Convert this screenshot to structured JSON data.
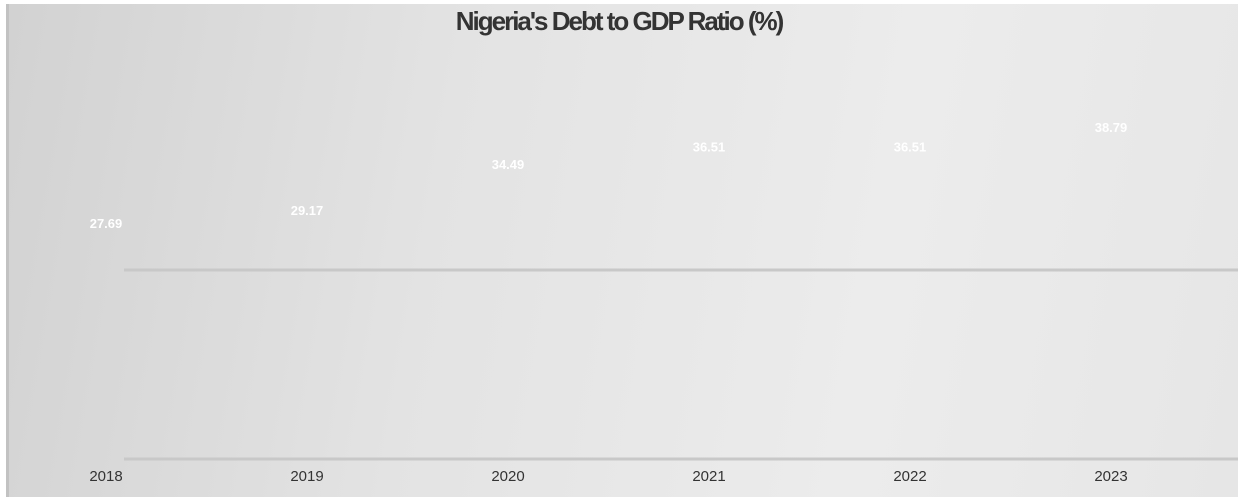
{
  "chart_data": {
    "type": "bar",
    "title": "Nigeria's Debt to GDP Ratio (%)",
    "categories": [
      "2018",
      "2019",
      "2020",
      "2021",
      "2022",
      "2023"
    ],
    "values": [
      27.69,
      29.17,
      34.49,
      36.51,
      36.51,
      38.79
    ],
    "xlabel": "",
    "ylabel": "",
    "grid": true,
    "colors": {
      "data_label": "#ffffff",
      "gridline": "#c8c8c8",
      "text": "#333333"
    }
  }
}
